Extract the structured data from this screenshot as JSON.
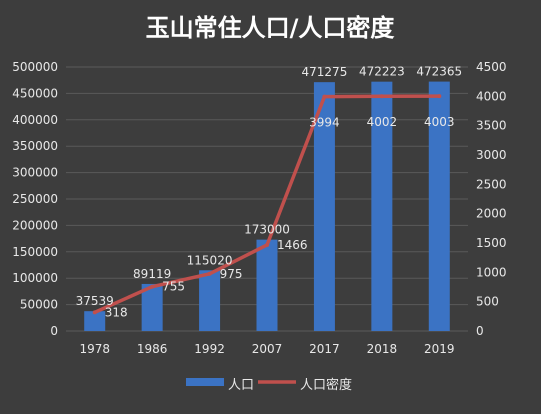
{
  "chart_data": {
    "type": "bar",
    "title": "玉山常住人口/人口密度",
    "categories": [
      "1978",
      "1986",
      "1992",
      "2007",
      "2017",
      "2018",
      "2019"
    ],
    "series": [
      {
        "name": "人口",
        "type": "bar",
        "axis": "left",
        "values": [
          37539,
          89119,
          115020,
          173000,
          471275,
          472223,
          472365
        ],
        "color": "#3b73c4"
      },
      {
        "name": "人口密度",
        "type": "line",
        "axis": "right",
        "values": [
          318,
          755,
          975,
          1466,
          3994,
          4002,
          4003
        ],
        "color": "#c0504d"
      }
    ],
    "ylim": [
      0,
      500000
    ],
    "yticks": [
      "0",
      "50000",
      "100000",
      "150000",
      "200000",
      "250000",
      "300000",
      "350000",
      "400000",
      "450000",
      "500000"
    ],
    "y2lim": [
      0,
      4500
    ],
    "y2ticks": [
      "0",
      "500",
      "1000",
      "1500",
      "2000",
      "2500",
      "3000",
      "3500",
      "4000",
      "4500"
    ],
    "grid": true,
    "legend_position": "bottom",
    "background": "#3d3d3d",
    "text_color": "#e8e8e8",
    "grid_color": "#5a5a5a"
  }
}
